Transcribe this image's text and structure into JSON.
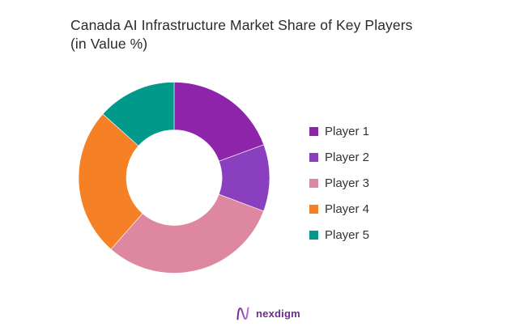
{
  "title": {
    "line1": "Canada AI Infrastructure Market Share of Key Players",
    "line2": "(in Value %)"
  },
  "chart_data": {
    "type": "pie",
    "variant": "donut",
    "title": "Canada AI Infrastructure Market Share of Key Players (in Value %)",
    "categories": [
      "Player 1",
      "Player 2",
      "Player 3",
      "Player 4",
      "Player 5"
    ],
    "values": [
      19.4,
      11.3,
      30.8,
      25.1,
      13.4
    ],
    "colors": [
      "#8E24AA",
      "#8A3FBF",
      "#DE87A0",
      "#F58025",
      "#00998A"
    ],
    "start_angle_deg": 0,
    "direction": "clockwise",
    "inner_radius_ratio": 0.5,
    "legend_position": "right",
    "data_labels": false
  },
  "legend": {
    "items": [
      {
        "label": "Player 1",
        "color": "#8E24AA"
      },
      {
        "label": "Player 2",
        "color": "#8A3FBF"
      },
      {
        "label": "Player 3",
        "color": "#DE87A0"
      },
      {
        "label": "Player 4",
        "color": "#F58025"
      },
      {
        "label": "Player 5",
        "color": "#00998A"
      }
    ]
  },
  "brand": {
    "name": "nexdigm",
    "icon": "nexdigm-wave-logo-icon",
    "color": "#6A2C91"
  }
}
